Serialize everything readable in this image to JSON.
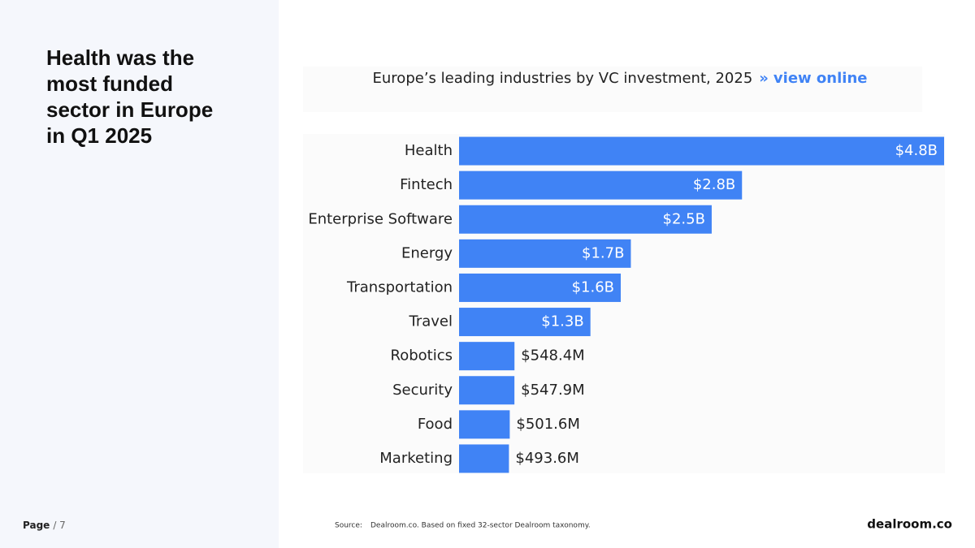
{
  "slide": {
    "heading": "Health was the most funded sector in Europe in Q1 2025",
    "page_label": "Page",
    "page_total": "/ 7",
    "source_label": "Source:",
    "source_text": "Dealroom.co. Based on fixed 32-sector Dealroom taxonomy.",
    "logo": "dealroom.co"
  },
  "chart_data": {
    "type": "bar",
    "orientation": "horizontal",
    "title": "Europe’s leading industries by VC investment, 2025",
    "link_marker": "»",
    "link": "view online",
    "categories": [
      "Health",
      "Fintech",
      "Enterprise Software",
      "Energy",
      "Transportation",
      "Travel",
      "Robotics",
      "Security",
      "Food",
      "Marketing"
    ],
    "values": [
      4800,
      2800,
      2500,
      1700,
      1600,
      1300,
      548.4,
      547.9,
      501.6,
      493.6
    ],
    "value_labels": [
      "$4.8B",
      "$2.8B",
      "$2.5B",
      "$1.7B",
      "$1.6B",
      "$1.3B",
      "$548.4M",
      "$547.9M",
      "$501.6M",
      "$493.6M"
    ],
    "color": "#4083f5"
  }
}
